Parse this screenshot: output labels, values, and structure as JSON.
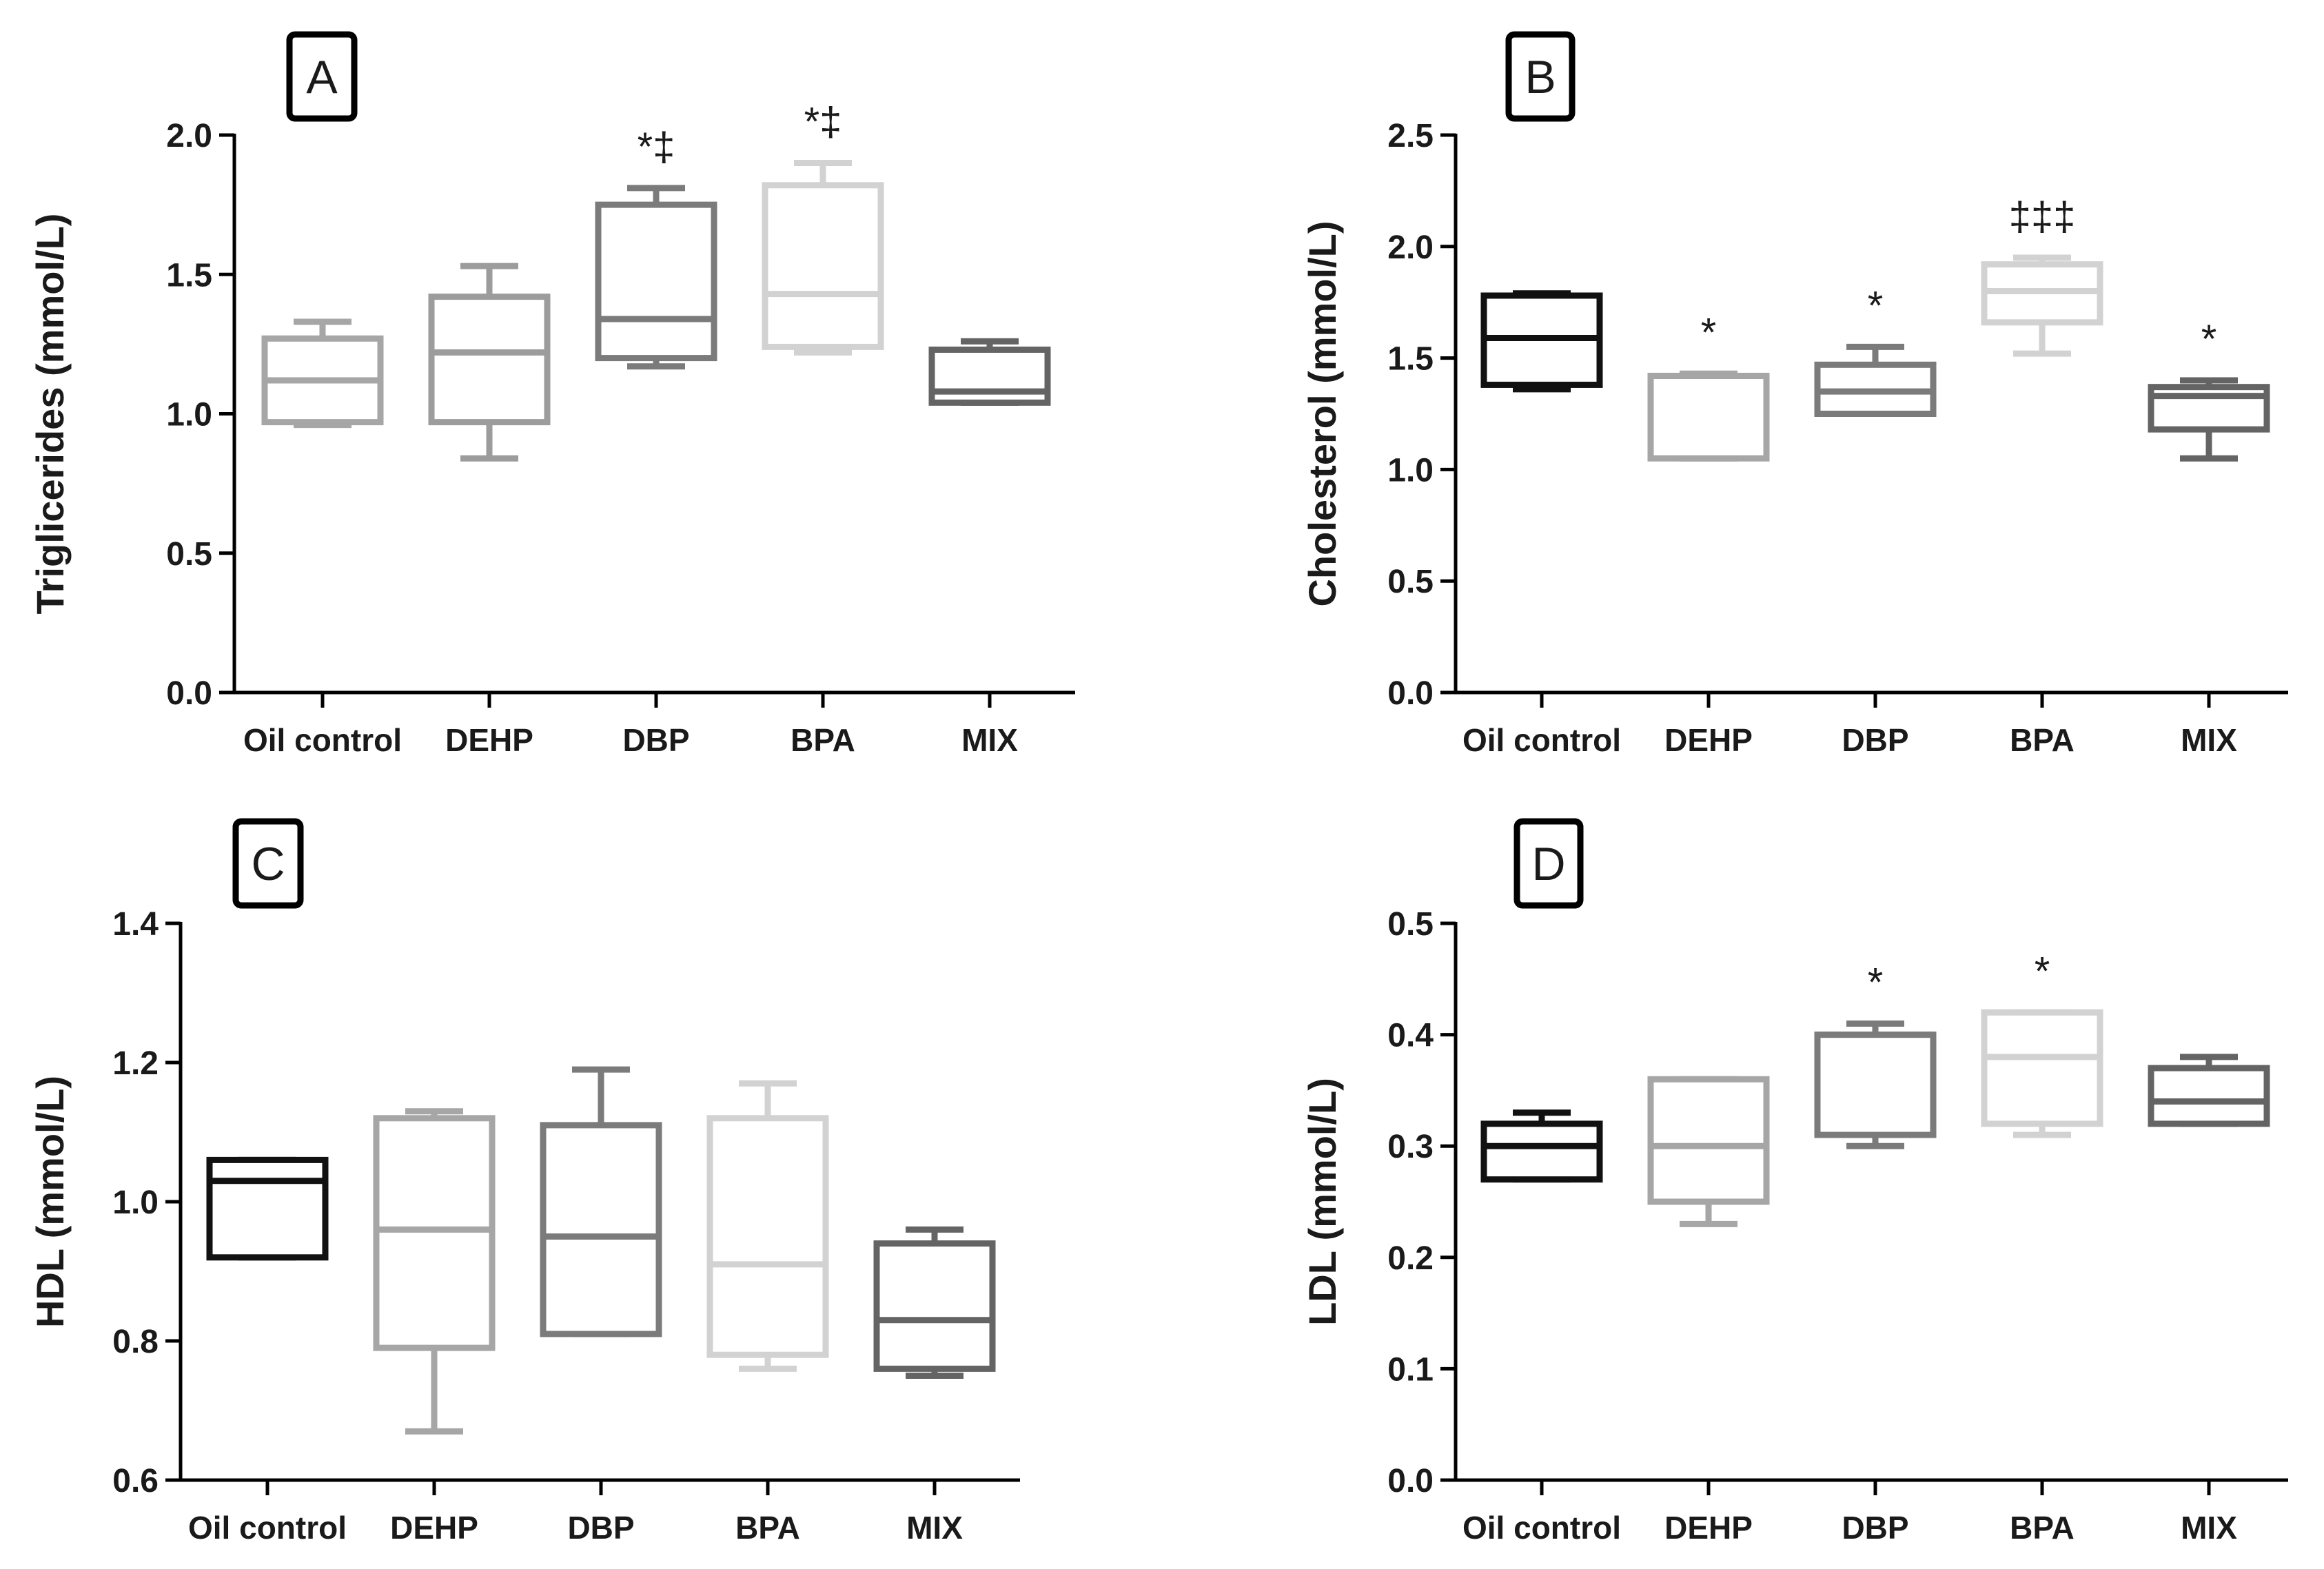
{
  "chart_data": [
    {
      "type": "box",
      "panel_label": "A",
      "ylabel": "Triglicerides (mmol/L)",
      "ylim": [
        0,
        2.0
      ],
      "yticks": [
        "0.0",
        "0.5",
        "1.0",
        "1.5",
        "2.0"
      ],
      "categories": [
        "Oil control",
        "DEHP",
        "DBP",
        "BPA",
        "MIX"
      ],
      "boxes": [
        {
          "min": 0.96,
          "q1": 0.97,
          "median": 1.12,
          "q3": 1.27,
          "max": 1.33
        },
        {
          "min": 0.84,
          "q1": 0.97,
          "median": 1.22,
          "q3": 1.42,
          "max": 1.53
        },
        {
          "min": 1.17,
          "q1": 1.2,
          "median": 1.34,
          "q3": 1.75,
          "max": 1.81
        },
        {
          "min": 1.22,
          "q1": 1.24,
          "median": 1.43,
          "q3": 1.82,
          "max": 1.9
        },
        {
          "min": 1.04,
          "q1": 1.04,
          "median": 1.08,
          "q3": 1.23,
          "max": 1.26
        }
      ],
      "annotations": [
        "",
        "",
        "*‡",
        "*‡",
        ""
      ],
      "colors": [
        "#a6a6a6",
        "#9c9c9c",
        "#7b7b7b",
        "#d2d2d2",
        "#646464"
      ]
    },
    {
      "type": "box",
      "panel_label": "B",
      "ylabel": "Cholesterol (mmol/L)",
      "ylim": [
        0,
        2.5
      ],
      "yticks": [
        "0.0",
        "0.5",
        "1.0",
        "1.5",
        "2.0",
        "2.5"
      ],
      "categories": [
        "Oil control",
        "DEHP",
        "DBP",
        "BPA",
        "MIX"
      ],
      "boxes": [
        {
          "min": 1.36,
          "q1": 1.38,
          "median": 1.59,
          "q3": 1.78,
          "max": 1.79
        },
        {
          "min": 1.05,
          "q1": 1.05,
          "median": 1.42,
          "q3": 1.42,
          "max": 1.43
        },
        {
          "min": 1.25,
          "q1": 1.25,
          "median": 1.35,
          "q3": 1.47,
          "max": 1.55
        },
        {
          "min": 1.52,
          "q1": 1.66,
          "median": 1.8,
          "q3": 1.92,
          "max": 1.95
        },
        {
          "min": 1.05,
          "q1": 1.18,
          "median": 1.33,
          "q3": 1.37,
          "max": 1.4
        }
      ],
      "annotations": [
        "",
        "*",
        "*",
        "‡‡‡",
        "*"
      ],
      "colors": [
        "#111111",
        "#a6a6a6",
        "#7b7b7b",
        "#d2d2d2",
        "#646464"
      ]
    },
    {
      "type": "box",
      "panel_label": "C",
      "ylabel": "HDL (mmol/L)",
      "ylim": [
        0.6,
        1.4
      ],
      "yticks": [
        "0.6",
        "0.8",
        "1.0",
        "1.2",
        "1.4"
      ],
      "categories": [
        "Oil control",
        "DEHP",
        "DBP",
        "BPA",
        "MIX"
      ],
      "boxes": [
        {
          "min": 0.92,
          "q1": 0.92,
          "median": 1.03,
          "q3": 1.06,
          "max": 1.06
        },
        {
          "min": 0.67,
          "q1": 0.79,
          "median": 0.96,
          "q3": 1.12,
          "max": 1.13
        },
        {
          "min": 0.81,
          "q1": 0.81,
          "median": 0.95,
          "q3": 1.11,
          "max": 1.19
        },
        {
          "min": 0.76,
          "q1": 0.78,
          "median": 0.91,
          "q3": 1.12,
          "max": 1.17
        },
        {
          "min": 0.75,
          "q1": 0.76,
          "median": 0.83,
          "q3": 0.94,
          "max": 0.96
        }
      ],
      "annotations": [
        "",
        "",
        "",
        "",
        ""
      ],
      "colors": [
        "#111111",
        "#a6a6a6",
        "#7b7b7b",
        "#d2d2d2",
        "#646464"
      ]
    },
    {
      "type": "box",
      "panel_label": "D",
      "ylabel": "LDL (mmol/L)",
      "ylim": [
        0,
        0.5
      ],
      "yticks": [
        "0.0",
        "0.1",
        "0.2",
        "0.3",
        "0.4",
        "0.5"
      ],
      "categories": [
        "Oil control",
        "DEHP",
        "DBP",
        "BPA",
        "MIX"
      ],
      "boxes": [
        {
          "min": 0.27,
          "q1": 0.27,
          "median": 0.3,
          "q3": 0.32,
          "max": 0.33
        },
        {
          "min": 0.23,
          "q1": 0.25,
          "median": 0.3,
          "q3": 0.36,
          "max": 0.36
        },
        {
          "min": 0.3,
          "q1": 0.31,
          "median": 0.4,
          "q3": 0.4,
          "max": 0.41
        },
        {
          "min": 0.31,
          "q1": 0.32,
          "median": 0.38,
          "q3": 0.42,
          "max": 0.42
        },
        {
          "min": 0.32,
          "q1": 0.32,
          "median": 0.34,
          "q3": 0.37,
          "max": 0.38
        }
      ],
      "annotations": [
        "",
        "",
        "*",
        "*",
        ""
      ],
      "colors": [
        "#111111",
        "#a6a6a6",
        "#7b7b7b",
        "#d2d2d2",
        "#646464"
      ]
    }
  ]
}
